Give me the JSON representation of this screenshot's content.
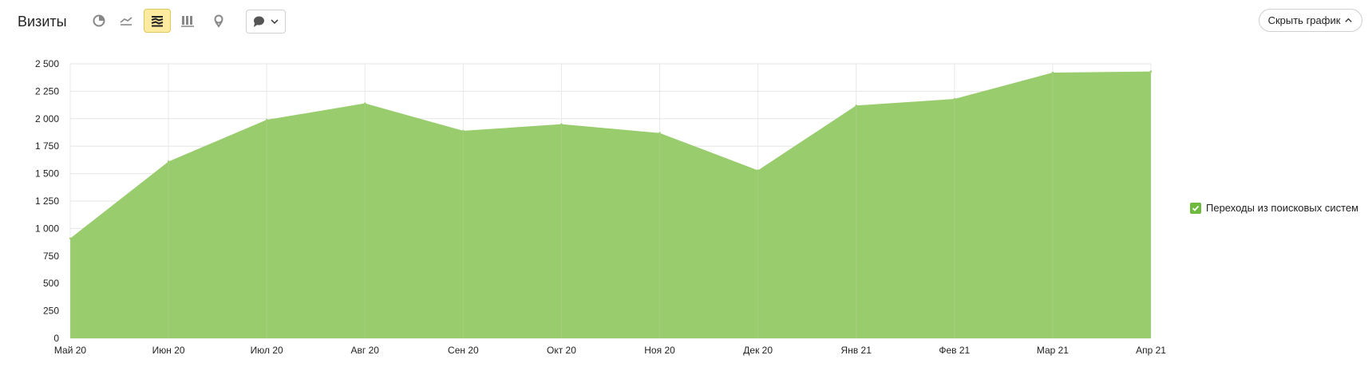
{
  "header": {
    "title": "Визиты",
    "hide_chart_label": "Скрыть график"
  },
  "toolbar": {
    "buttons": [
      {
        "name": "pie-chart-icon",
        "active": false
      },
      {
        "name": "line-chart-icon",
        "active": false
      },
      {
        "name": "area-chart-icon",
        "active": true
      },
      {
        "name": "bar-chart-icon",
        "active": false
      },
      {
        "name": "map-icon",
        "active": false
      }
    ],
    "annotation_icon": "speech-bubble-icon"
  },
  "legend": {
    "items": [
      {
        "label": "Переходы из поисковых систем",
        "color": "#6fba3e",
        "checked": true
      }
    ]
  },
  "chart_data": {
    "type": "area",
    "title": "",
    "xlabel": "",
    "ylabel": "",
    "categories": [
      "Май 20",
      "Июн 20",
      "Июл 20",
      "Авг 20",
      "Сен 20",
      "Окт 20",
      "Ноя 20",
      "Дек 20",
      "Янв 21",
      "Фев 21",
      "Мар 21",
      "Апр 21"
    ],
    "series": [
      {
        "name": "Переходы из поисковых систем",
        "color": "#94c965",
        "values": [
          910,
          1610,
          1990,
          2140,
          1890,
          1950,
          1870,
          1530,
          2120,
          2180,
          2420,
          2430
        ]
      }
    ],
    "ylim": [
      0,
      2500
    ],
    "yticks": [
      0,
      250,
      500,
      750,
      1000,
      1250,
      1500,
      1750,
      2000,
      2250,
      2500
    ],
    "ytick_labels": [
      "0",
      "250",
      "500",
      "750",
      "1 000",
      "1 250",
      "1 500",
      "1 750",
      "2 000",
      "2 250",
      "2 500"
    ],
    "grid": true,
    "legend_position": "right"
  }
}
